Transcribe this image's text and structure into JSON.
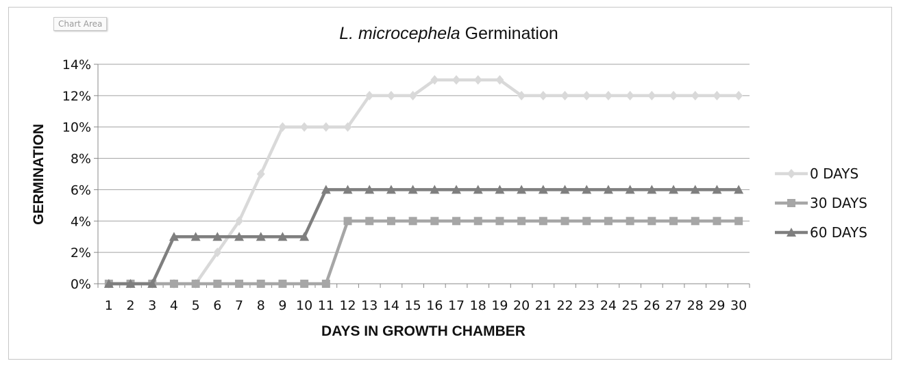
{
  "chart_area_tag": "Chart Area",
  "chart_data": {
    "type": "line",
    "title_italic": "L. microcephela",
    "title_rest": " Germination",
    "xlabel": "DAYS IN GROWTH CHAMBER",
    "ylabel": "GERMINATION",
    "categories": [
      "1",
      "2",
      "3",
      "4",
      "5",
      "6",
      "7",
      "8",
      "9",
      "10",
      "11",
      "12",
      "13",
      "14",
      "15",
      "16",
      "17",
      "18",
      "19",
      "20",
      "21",
      "22",
      "23",
      "24",
      "25",
      "26",
      "27",
      "28",
      "29",
      "30"
    ],
    "ylim": [
      0,
      14
    ],
    "yticks": [
      "0%",
      "2%",
      "4%",
      "6%",
      "8%",
      "10%",
      "12%",
      "14%"
    ],
    "ytick_values": [
      0,
      2,
      4,
      6,
      8,
      10,
      12,
      14
    ],
    "grid": true,
    "legend_position": "right",
    "series": [
      {
        "name": "0 DAYS",
        "marker": "diamond",
        "color": "#d9d9d9",
        "values": [
          0,
          0,
          0,
          0,
          0,
          2,
          4,
          7,
          10,
          10,
          10,
          10,
          12,
          12,
          12,
          13,
          13,
          13,
          13,
          12,
          12,
          12,
          12,
          12,
          12,
          12,
          12,
          12,
          12,
          12
        ]
      },
      {
        "name": "30 DAYS",
        "marker": "square",
        "color": "#a6a6a6",
        "values": [
          0,
          0,
          0,
          0,
          0,
          0,
          0,
          0,
          0,
          0,
          0,
          4,
          4,
          4,
          4,
          4,
          4,
          4,
          4,
          4,
          4,
          4,
          4,
          4,
          4,
          4,
          4,
          4,
          4,
          4
        ]
      },
      {
        "name": "60 DAYS",
        "marker": "triangle",
        "color": "#7f7f7f",
        "values": [
          0,
          0,
          0,
          3,
          3,
          3,
          3,
          3,
          3,
          3,
          6,
          6,
          6,
          6,
          6,
          6,
          6,
          6,
          6,
          6,
          6,
          6,
          6,
          6,
          6,
          6,
          6,
          6,
          6,
          6
        ]
      }
    ]
  }
}
